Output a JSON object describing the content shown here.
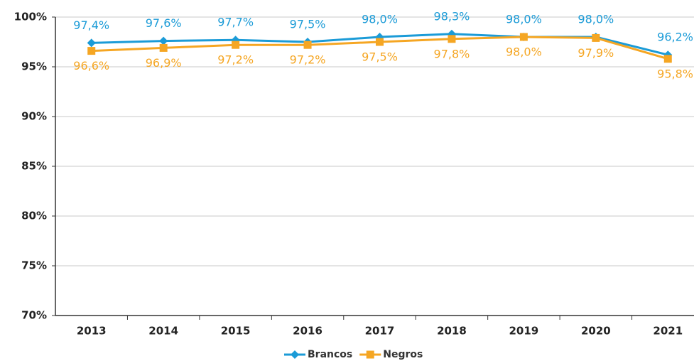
{
  "chart_data": {
    "type": "line",
    "categories": [
      "2013",
      "2014",
      "2015",
      "2016",
      "2017",
      "2018",
      "2019",
      "2020",
      "2021"
    ],
    "series": [
      {
        "name": "Brancos",
        "color": "#1b9bd7",
        "marker": "diamond",
        "values": [
          97.4,
          97.6,
          97.7,
          97.5,
          98.0,
          98.3,
          98.0,
          98.0,
          96.2
        ],
        "value_labels": [
          "97,4%",
          "97,6%",
          "97,7%",
          "97,5%",
          "98,0%",
          "98,3%",
          "98,0%",
          "98,0%",
          "96,2%"
        ]
      },
      {
        "name": "Negros",
        "color": "#f5a623",
        "marker": "square",
        "values": [
          96.6,
          96.9,
          97.2,
          97.2,
          97.5,
          97.8,
          98.0,
          97.9,
          95.8
        ],
        "value_labels": [
          "96,6%",
          "96,9%",
          "97,2%",
          "97,2%",
          "97,5%",
          "97,8%",
          "98,0%",
          "97,9%",
          "95,8%"
        ]
      }
    ],
    "ylim": [
      70,
      100
    ],
    "yticks": [
      {
        "value": 70,
        "label": "70%"
      },
      {
        "value": 75,
        "label": "75%"
      },
      {
        "value": 80,
        "label": "80%"
      },
      {
        "value": 85,
        "label": "85%"
      },
      {
        "value": 90,
        "label": "90%"
      },
      {
        "value": 95,
        "label": "95%"
      },
      {
        "value": 100,
        "label": "100%"
      }
    ],
    "grid": true,
    "legend": "bottom"
  }
}
